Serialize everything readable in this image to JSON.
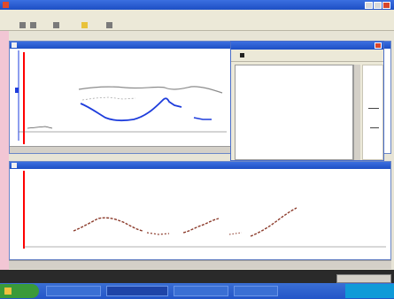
{
  "app": {
    "title": "",
    "menu_items": [
      "",
      "",
      "",
      "",
      "",
      "",
      "",
      "",
      ""
    ],
    "toolbar_items": [
      "",
      "",
      "",
      "",
      "",
      "",
      ""
    ]
  },
  "window_top": {
    "title": "",
    "status_labels": [
      "",
      ""
    ]
  },
  "window_bottom": {
    "title": "",
    "ylabel": "",
    "status_labels": [
      "",
      "",
      "",
      "",
      "",
      "",
      "",
      ""
    ]
  },
  "dialog": {
    "title": "",
    "toolbar_label": "",
    "rows": [
      {
        "label": "",
        "v1": "",
        "v2": "",
        "v3": ""
      },
      {
        "label": "",
        "v1": "",
        "v2": "",
        "v3": ""
      },
      {
        "label": "",
        "v1": "",
        "v2": "",
        "v3": ""
      },
      {
        "label": "",
        "v1": "",
        "v2": "",
        "v3": ""
      },
      {
        "label": "",
        "v1": "",
        "v2": "",
        "v3": ""
      },
      {
        "label": "",
        "v1": "",
        "v2": "",
        "v3": ""
      },
      {
        "label": "",
        "v1": "",
        "v2": "",
        "v3": ""
      },
      {
        "label": "",
        "v1": "",
        "v2": "",
        "v3": ""
      },
      {
        "label": "",
        "v1": "",
        "v2": "",
        "v3": ""
      },
      {
        "label": "",
        "v1": "",
        "v2": "",
        "v3": ""
      },
      {
        "label": "",
        "v1": "",
        "v2": "",
        "v3": ""
      },
      {
        "label": "",
        "v1": "",
        "v2": "",
        "v3": ""
      },
      {
        "label": "",
        "v1": "",
        "v2": "",
        "v3": ""
      },
      {
        "label": "",
        "v1": "",
        "v2": "",
        "v3": ""
      },
      {
        "label": "",
        "v1": "",
        "v2": "",
        "v3": ""
      },
      {
        "label": "",
        "v1": "",
        "v2": "",
        "v3": ""
      },
      {
        "label": "",
        "v1": "",
        "v2": "",
        "v3": ""
      },
      {
        "label": "",
        "v1": "",
        "v2": "",
        "v3": ""
      },
      {
        "label": "",
        "v1": "",
        "v2": "",
        "v3": ""
      },
      {
        "label": "",
        "v1": "",
        "v2": "",
        "v3": ""
      }
    ]
  },
  "taskbar": {
    "start_label": "",
    "items": [
      "",
      "",
      "",
      ""
    ],
    "clock": ""
  },
  "colors": {
    "titlebar": "#1d4fc4",
    "cursor_line": "#ff0000",
    "trace_blue": "#1e3ddc",
    "trace_gray": "#8c8c8c",
    "trace_brown": "#8b3a2a",
    "taskbar": "#2355c8",
    "start_button": "#3a9a3a"
  },
  "icons": [
    "app-icon",
    "minimize-icon",
    "maximize-icon",
    "close-icon",
    "dialog-close-icon",
    "start-icon"
  ]
}
